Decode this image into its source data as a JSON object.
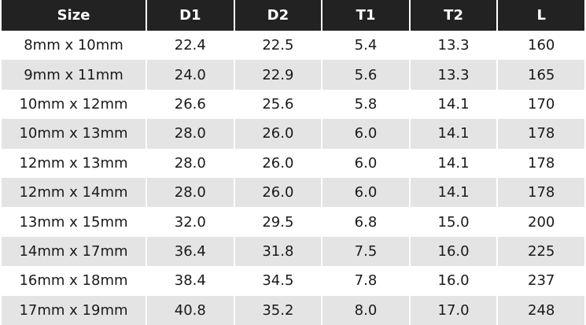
{
  "table": {
    "header": [
      "Size",
      "D1",
      "D2",
      "T1",
      "T2",
      "L"
    ],
    "rows": [
      [
        "8mm x 10mm",
        "22.4",
        "22.5",
        "5.4",
        "13.3",
        "160"
      ],
      [
        "9mm x 11mm",
        "24.0",
        "22.9",
        "5.6",
        "13.3",
        "165"
      ],
      [
        "10mm x 12mm",
        "26.6",
        "25.6",
        "5.8",
        "14.1",
        "170"
      ],
      [
        "10mm x 13mm",
        "28.0",
        "26.0",
        "6.0",
        "14.1",
        "178"
      ],
      [
        "12mm x 13mm",
        "28.0",
        "26.0",
        "6.0",
        "14.1",
        "178"
      ],
      [
        "12mm x 14mm",
        "28.0",
        "26.0",
        "6.0",
        "14.1",
        "178"
      ],
      [
        "13mm x 15mm",
        "32.0",
        "29.5",
        "6.8",
        "15.0",
        "200"
      ],
      [
        "14mm x 17mm",
        "36.4",
        "31.8",
        "7.5",
        "16.0",
        "225"
      ],
      [
        "16mm x 18mm",
        "38.4",
        "34.5",
        "7.8",
        "16.0",
        "237"
      ],
      [
        "17mm x 19mm",
        "40.8",
        "35.2",
        "8.0",
        "17.0",
        "248"
      ]
    ]
  }
}
